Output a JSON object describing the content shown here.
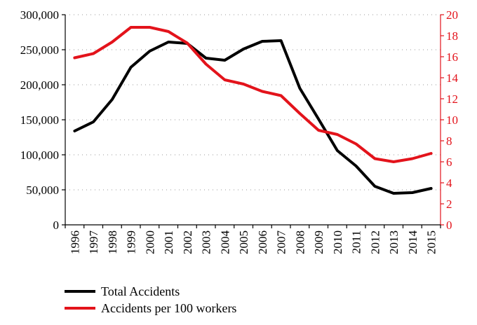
{
  "chart_data": {
    "type": "line",
    "x": [
      "1996",
      "1997",
      "1998",
      "1999",
      "2000",
      "2001",
      "2002",
      "2003",
      "2004",
      "2005",
      "2006",
      "2007",
      "2008",
      "2009",
      "2010",
      "2011",
      "2012",
      "2013",
      "2014",
      "2015"
    ],
    "series": [
      {
        "name": "Total Accidents",
        "axis": "left",
        "color": "#000000",
        "values": [
          134000,
          147000,
          179000,
          225000,
          248000,
          261000,
          259000,
          238000,
          235000,
          251000,
          262000,
          263000,
          195000,
          151000,
          106000,
          84000,
          55000,
          45000,
          46000,
          52000
        ]
      },
      {
        "name": "Accidents per 100 workers",
        "axis": "right",
        "color": "#e3131b",
        "values": [
          15.9,
          16.3,
          17.4,
          18.8,
          18.8,
          18.4,
          17.3,
          15.3,
          13.8,
          13.4,
          12.7,
          12.3,
          10.6,
          9.0,
          8.6,
          7.7,
          6.3,
          6.0,
          6.3,
          6.8
        ]
      }
    ],
    "y_left": {
      "ylim": [
        0,
        300000
      ],
      "ticks": [
        "0",
        "50,000",
        "100,000",
        "150,000",
        "200,000",
        "250,000",
        "300,000"
      ],
      "color": "#000000"
    },
    "y_right": {
      "ylim": [
        0,
        20
      ],
      "ticks": [
        "0",
        "2",
        "4",
        "6",
        "8",
        "10",
        "12",
        "14",
        "16",
        "18",
        "20"
      ],
      "color": "#e3131b"
    },
    "grid": "horizontal-dotted",
    "legend_position": "bottom-left"
  }
}
